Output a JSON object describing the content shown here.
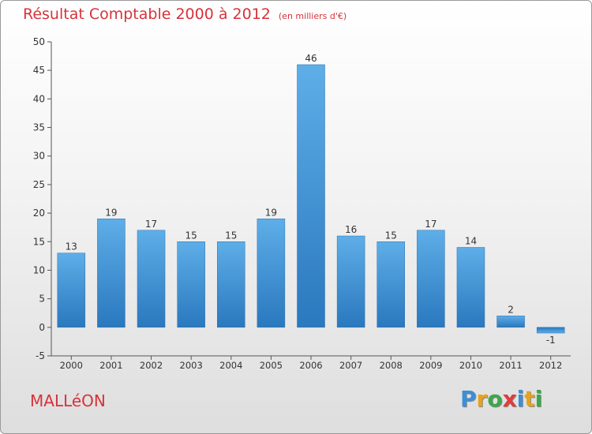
{
  "header": {
    "title": "Résultat Comptable 2000 à 2012",
    "unit": "(en milliers d'€)"
  },
  "commune": "MALLéON",
  "logo": {
    "letters": [
      {
        "char": "P",
        "color": "#3b8fd6"
      },
      {
        "char": "r",
        "color": "#e8a21a"
      },
      {
        "char": "o",
        "color": "#3aa84a"
      },
      {
        "char": "x",
        "color": "#e23b3b"
      },
      {
        "char": "i",
        "color": "#3b8fd6"
      },
      {
        "char": "t",
        "color": "#e8a21a"
      },
      {
        "char": "i",
        "color": "#3aa84a"
      }
    ]
  },
  "chart_data": {
    "type": "bar",
    "title": "Résultat Comptable 2000 à 2012",
    "subtitle": "(en milliers d'€)",
    "xlabel": "",
    "ylabel": "",
    "categories": [
      "2000",
      "2001",
      "2002",
      "2003",
      "2004",
      "2005",
      "2006",
      "2007",
      "2008",
      "2009",
      "2010",
      "2011",
      "2012"
    ],
    "values": [
      13,
      19,
      17,
      15,
      15,
      19,
      46,
      16,
      15,
      17,
      14,
      2,
      -1
    ],
    "labels": [
      "13",
      "19",
      "17",
      "15",
      "15",
      "19",
      "46",
      "16",
      "15",
      "17",
      "14",
      "2",
      "-1"
    ],
    "ylim": [
      -5,
      50
    ],
    "yticks": [
      -5,
      0,
      5,
      10,
      15,
      20,
      25,
      30,
      35,
      40,
      45,
      50
    ],
    "grid": false,
    "bar_color": "#3f97dc"
  }
}
